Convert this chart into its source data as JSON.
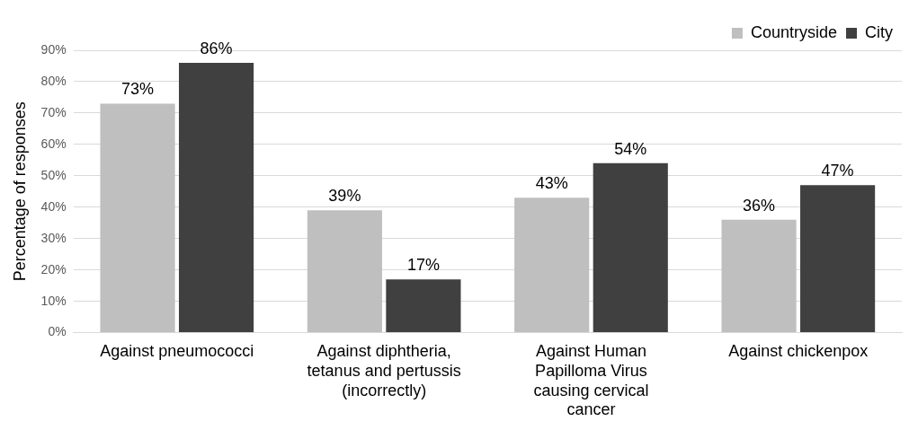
{
  "chart_data": {
    "type": "bar",
    "ylabel": "Percentage of responses",
    "categories": [
      "Against pneumococci",
      "Against diphtheria, tetanus and pertussis (incorrectly)",
      "Against Human Papilloma Virus causing cervical cancer",
      "Against chickenpox"
    ],
    "series": [
      {
        "name": "Countryside",
        "color": "#bfbfbf",
        "values": [
          73,
          39,
          43,
          36
        ],
        "value_labels": [
          "73%",
          "39%",
          "43%",
          "36%"
        ]
      },
      {
        "name": "City",
        "color": "#404040",
        "values": [
          86,
          17,
          54,
          47
        ],
        "value_labels": [
          "86%",
          "17%",
          "54%",
          "47%"
        ]
      }
    ],
    "ylim": [
      0,
      90
    ],
    "yticks": [
      {
        "value": 0,
        "label": "0%"
      },
      {
        "value": 10,
        "label": "10%"
      },
      {
        "value": 20,
        "label": "20%"
      },
      {
        "value": 30,
        "label": "30%"
      },
      {
        "value": 40,
        "label": "40%"
      },
      {
        "value": 50,
        "label": "50%"
      },
      {
        "value": 60,
        "label": "60%"
      },
      {
        "value": 70,
        "label": "70%"
      },
      {
        "value": 80,
        "label": "80%"
      },
      {
        "value": 90,
        "label": "90%"
      }
    ],
    "grid": "y",
    "legend": "top right"
  }
}
